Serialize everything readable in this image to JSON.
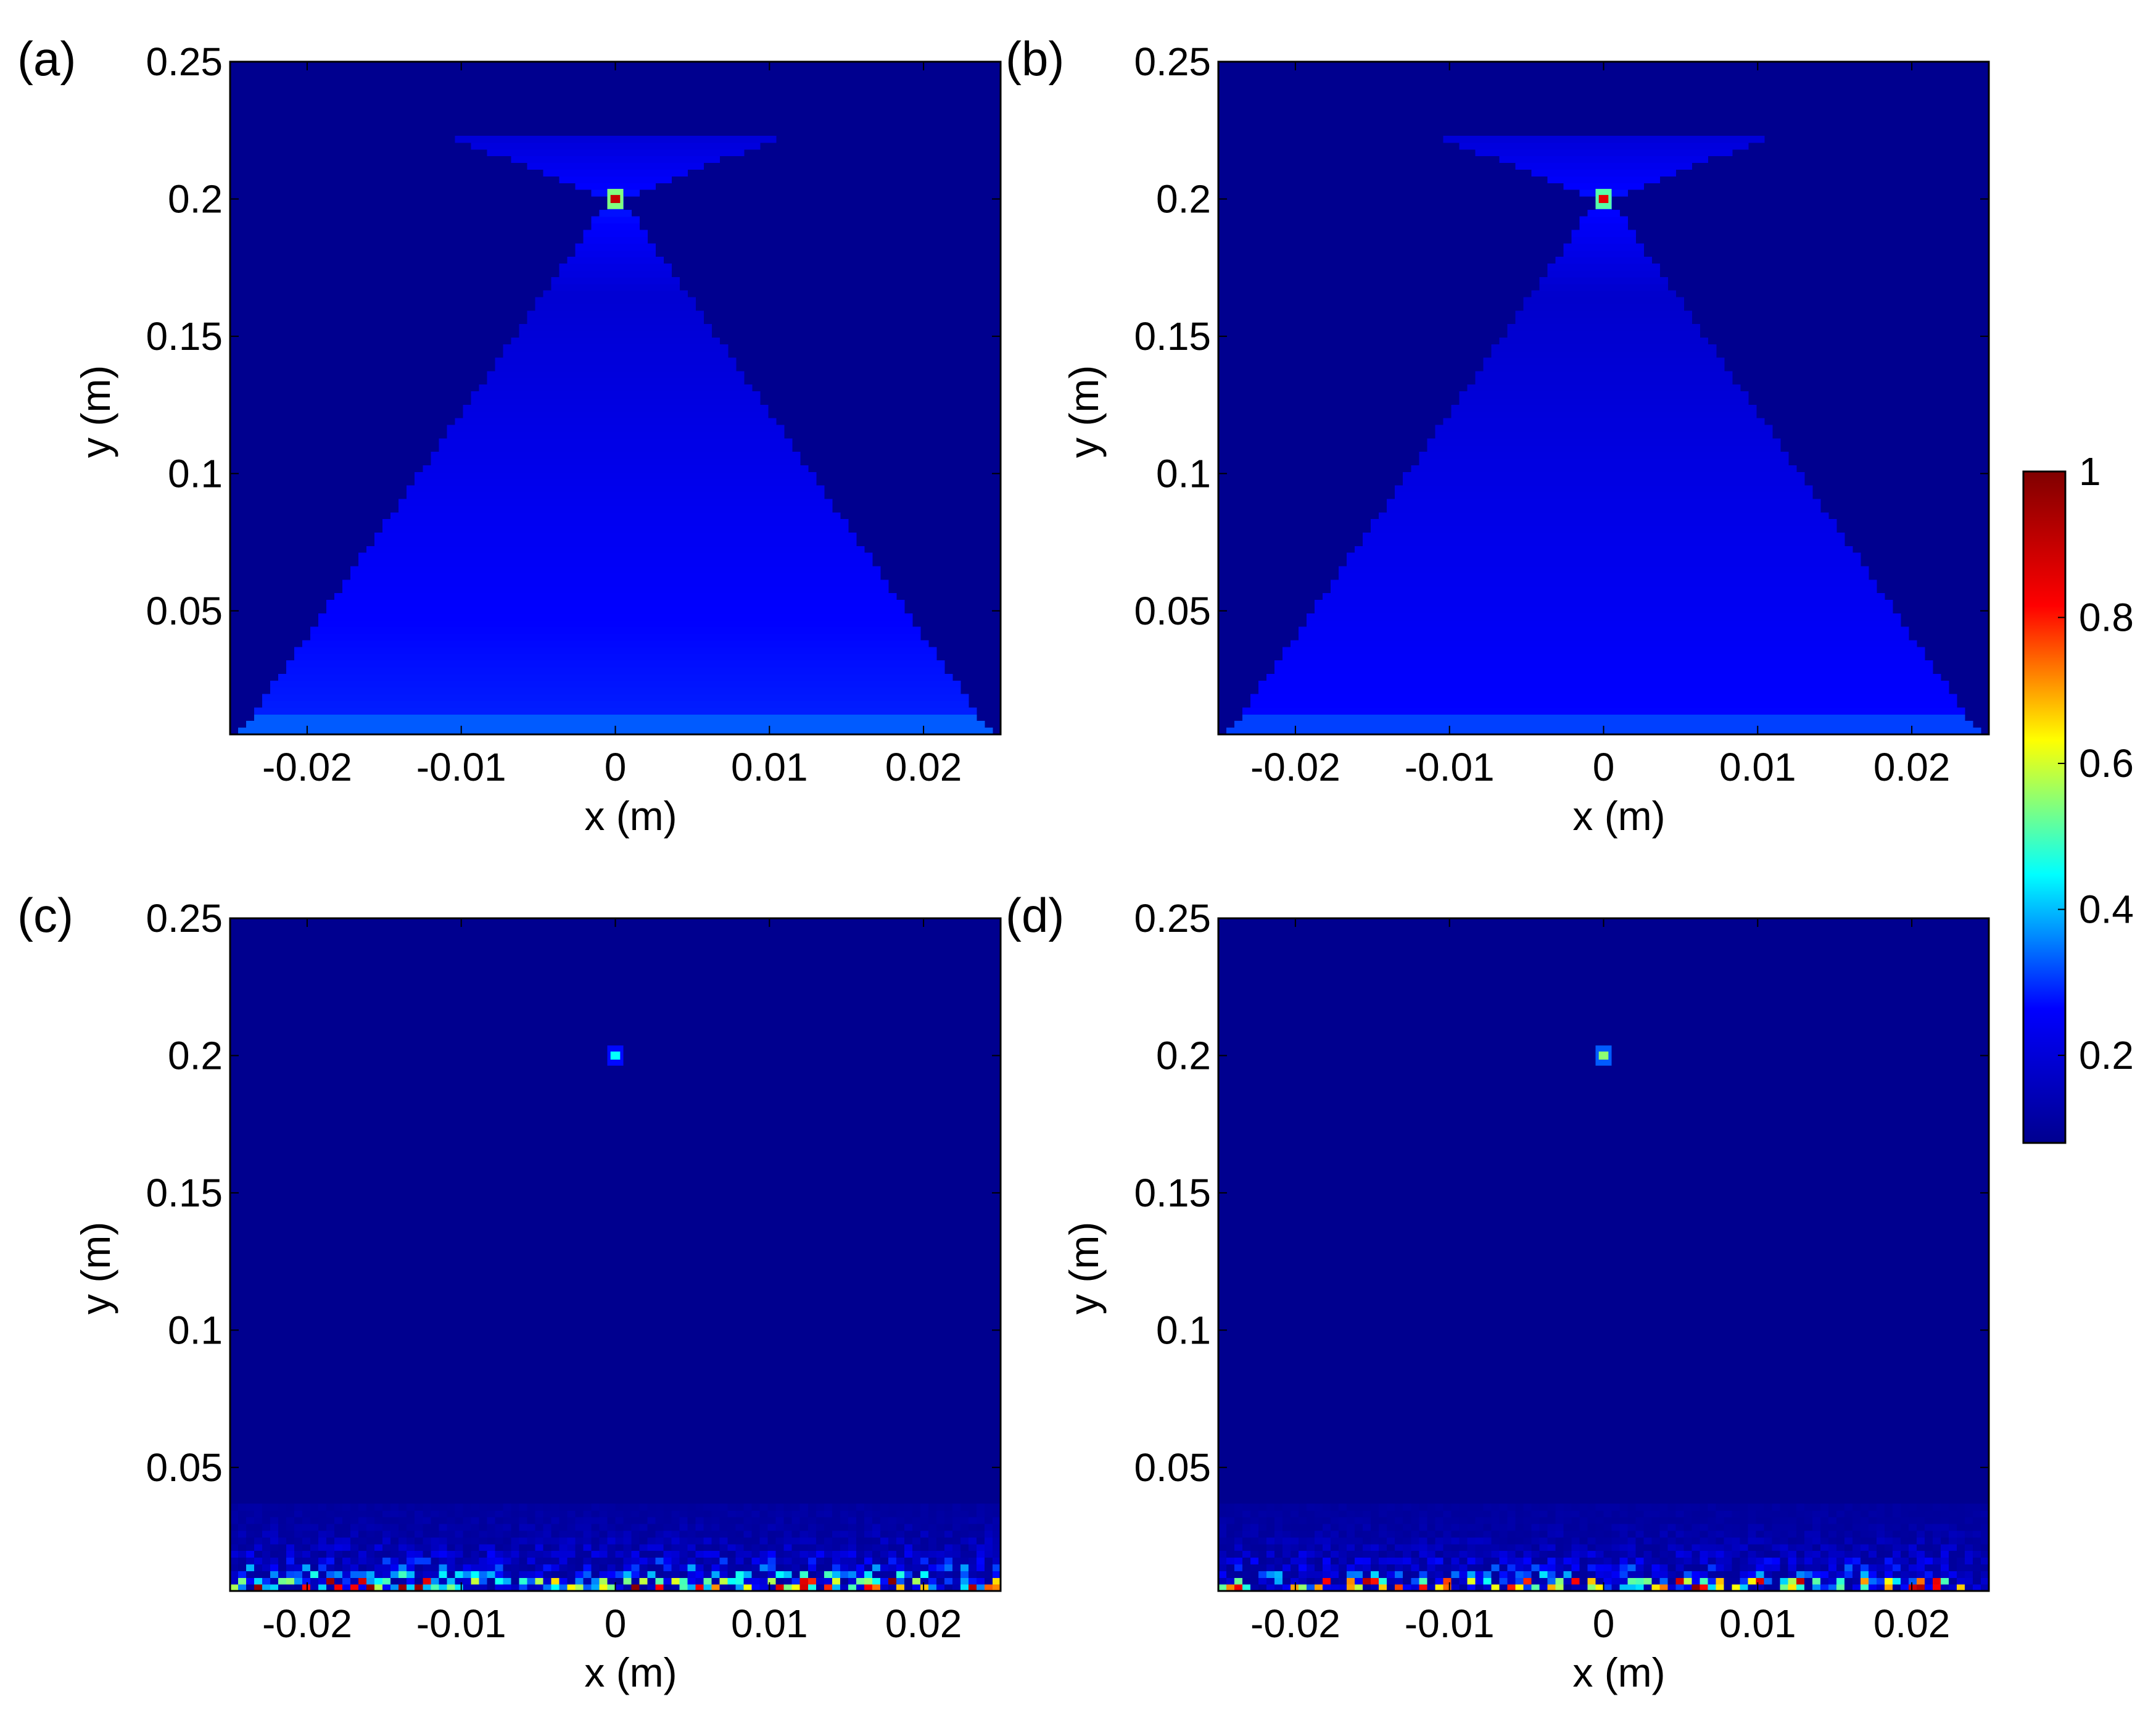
{
  "colormap": {
    "name": "jet",
    "background": "#00008F",
    "stops": [
      "#00008F",
      "#0000FF",
      "#00FFFF",
      "#FFFF00",
      "#FF0000",
      "#800000"
    ]
  },
  "colorbar": {
    "min": 0.08,
    "max": 1,
    "ticks": [
      {
        "value": 1,
        "label": "1"
      },
      {
        "value": 0.8,
        "label": "0.8"
      },
      {
        "value": 0.6,
        "label": "0.6"
      },
      {
        "value": 0.4,
        "label": "0.4"
      },
      {
        "value": 0.2,
        "label": "0.2"
      }
    ]
  },
  "chart_data": [
    {
      "type": "heatmap",
      "panel_label": "(a)",
      "xlabel": "x (m)",
      "ylabel": "y (m)",
      "xlim": [
        -0.025,
        0.025
      ],
      "ylim": [
        0.005,
        0.25
      ],
      "xticks": [
        {
          "value": -0.02,
          "label": "-0.02"
        },
        {
          "value": -0.01,
          "label": "-0.01"
        },
        {
          "value": 0,
          "label": "0"
        },
        {
          "value": 0.01,
          "label": "0.01"
        },
        {
          "value": 0.02,
          "label": "0.02"
        }
      ],
      "yticks": [
        {
          "value": 0.25,
          "label": "0.25"
        },
        {
          "value": 0.2,
          "label": "0.2"
        },
        {
          "value": 0.15,
          "label": "0.15"
        },
        {
          "value": 0.1,
          "label": "0.1"
        },
        {
          "value": 0.05,
          "label": "0.05"
        }
      ],
      "pattern": "cone",
      "focus": {
        "x": 0,
        "y": 0.2,
        "value": 0.9
      },
      "source_band_value": 0.33,
      "cone_base_value": 0.22,
      "speckle_level": 0.0
    },
    {
      "type": "heatmap",
      "panel_label": "(b)",
      "xlabel": "x (m)",
      "ylabel": "y (m)",
      "xlim": [
        -0.025,
        0.025
      ],
      "ylim": [
        0.005,
        0.25
      ],
      "xticks": [
        {
          "value": -0.02,
          "label": "-0.02"
        },
        {
          "value": -0.01,
          "label": "-0.01"
        },
        {
          "value": 0,
          "label": "0"
        },
        {
          "value": 0.01,
          "label": "0.01"
        },
        {
          "value": 0.02,
          "label": "0.02"
        }
      ],
      "yticks": [
        {
          "value": 0.25,
          "label": "0.25"
        },
        {
          "value": 0.2,
          "label": "0.2"
        },
        {
          "value": 0.15,
          "label": "0.15"
        },
        {
          "value": 0.1,
          "label": "0.1"
        },
        {
          "value": 0.05,
          "label": "0.05"
        }
      ],
      "pattern": "cone",
      "focus": {
        "x": 0,
        "y": 0.2,
        "value": 0.85
      },
      "source_band_value": 0.31,
      "cone_base_value": 0.2,
      "speckle_level": 0.0
    },
    {
      "type": "heatmap",
      "panel_label": "(c)",
      "xlabel": "x (m)",
      "ylabel": "y (m)",
      "xlim": [
        -0.025,
        0.025
      ],
      "ylim": [
        0.005,
        0.25
      ],
      "xticks": [
        {
          "value": -0.02,
          "label": "-0.02"
        },
        {
          "value": -0.01,
          "label": "-0.01"
        },
        {
          "value": 0,
          "label": "0"
        },
        {
          "value": 0.01,
          "label": "0.01"
        },
        {
          "value": 0.02,
          "label": "0.02"
        }
      ],
      "yticks": [
        {
          "value": 0.25,
          "label": "0.25"
        },
        {
          "value": 0.2,
          "label": "0.2"
        },
        {
          "value": 0.15,
          "label": "0.15"
        },
        {
          "value": 0.1,
          "label": "0.1"
        },
        {
          "value": 0.05,
          "label": "0.05"
        }
      ],
      "pattern": "speckle",
      "focus": {
        "x": 0,
        "y": 0.2,
        "value": 0.45
      },
      "source_band_value": 0.0,
      "cone_base_value": 0.0,
      "speckle_level": 0.55
    },
    {
      "type": "heatmap",
      "panel_label": "(d)",
      "xlabel": "x (m)",
      "ylabel": "y (m)",
      "xlim": [
        -0.025,
        0.025
      ],
      "ylim": [
        0.005,
        0.25
      ],
      "xticks": [
        {
          "value": -0.02,
          "label": "-0.02"
        },
        {
          "value": -0.01,
          "label": "-0.01"
        },
        {
          "value": 0,
          "label": "0"
        },
        {
          "value": 0.01,
          "label": "0.01"
        },
        {
          "value": 0.02,
          "label": "0.02"
        }
      ],
      "yticks": [
        {
          "value": 0.25,
          "label": "0.25"
        },
        {
          "value": 0.2,
          "label": "0.2"
        },
        {
          "value": 0.15,
          "label": "0.15"
        },
        {
          "value": 0.1,
          "label": "0.1"
        },
        {
          "value": 0.05,
          "label": "0.05"
        }
      ],
      "pattern": "speckle",
      "focus": {
        "x": 0,
        "y": 0.2,
        "value": 0.55
      },
      "source_band_value": 0.0,
      "cone_base_value": 0.0,
      "speckle_level": 0.45
    }
  ]
}
